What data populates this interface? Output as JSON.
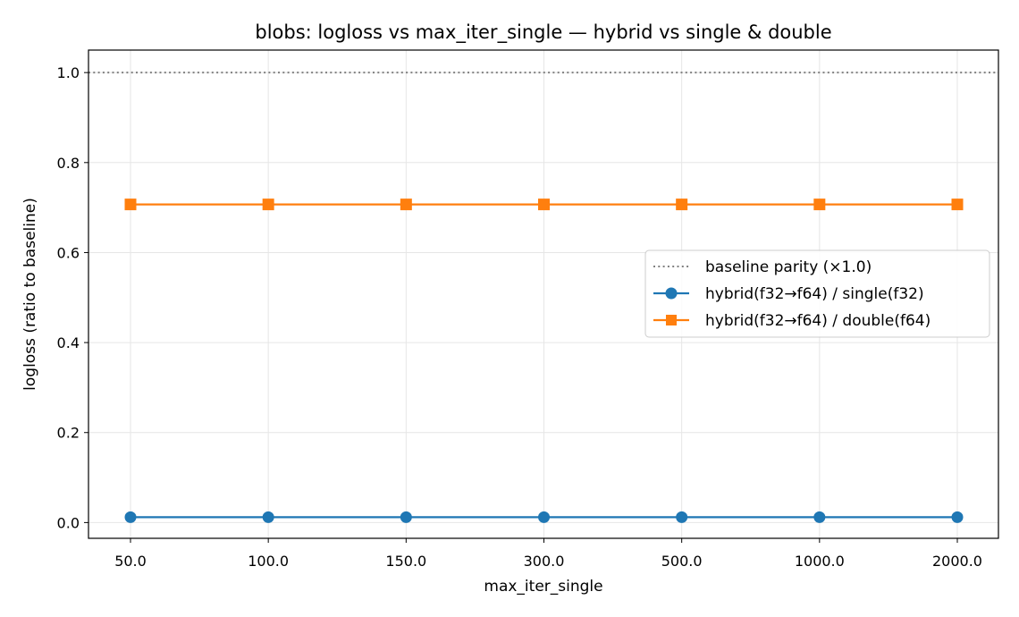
{
  "chart_data": {
    "type": "line",
    "title": "blobs: logloss vs max_iter_single — hybrid vs single & double",
    "xlabel": "max_iter_single",
    "ylabel": "logloss (ratio to baseline)",
    "categories": [
      "50.0",
      "100.0",
      "150.0",
      "300.0",
      "500.0",
      "1000.0",
      "2000.0"
    ],
    "ylim": [
      -0.035,
      1.05
    ],
    "yticks": [
      "0.0",
      "0.2",
      "0.4",
      "0.6",
      "0.8",
      "1.0"
    ],
    "grid": true,
    "legend_position": "center-right",
    "reference_line": {
      "name": "baseline parity (×1.0)",
      "value": 1.0,
      "style": "dotted",
      "color": "#808080"
    },
    "series": [
      {
        "name": "hybrid(f32→f64) / single(f32)",
        "values": [
          0.012,
          0.012,
          0.012,
          0.012,
          0.012,
          0.012,
          0.012
        ],
        "color": "#1f77b4",
        "marker": "circle"
      },
      {
        "name": "hybrid(f32→f64) / double(f64)",
        "values": [
          0.707,
          0.707,
          0.707,
          0.707,
          0.707,
          0.707,
          0.707
        ],
        "color": "#ff7f0e",
        "marker": "square"
      }
    ]
  }
}
